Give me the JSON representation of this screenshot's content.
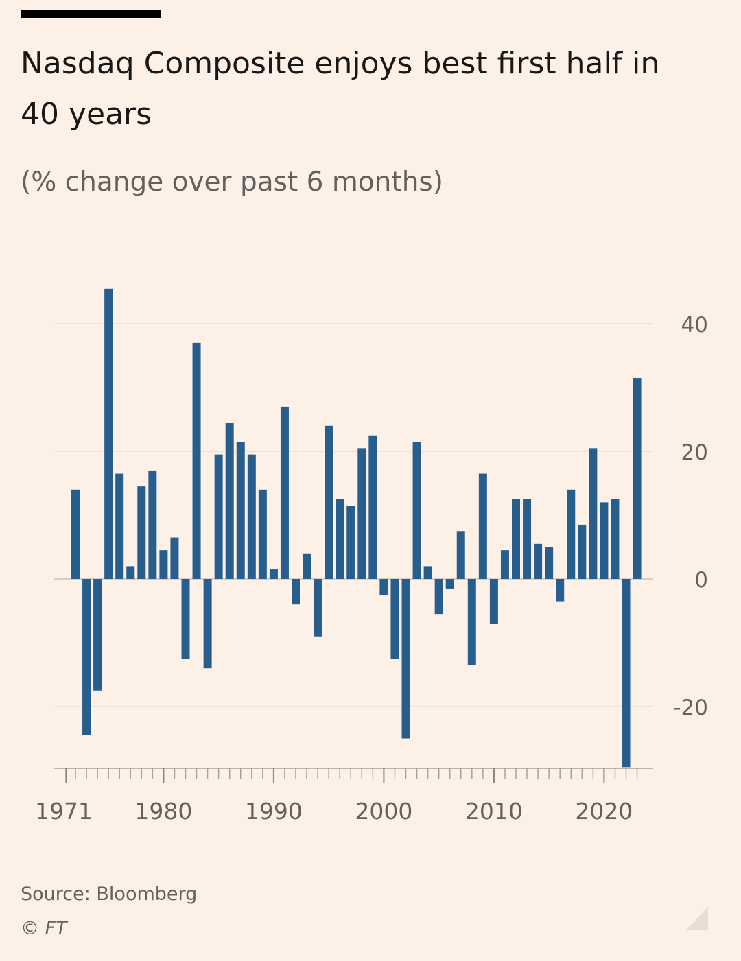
{
  "header": {
    "title": "Nasdaq Composite enjoys best first half in 40 years",
    "subtitle": "(% change over past 6 months)"
  },
  "footer": {
    "source": "Source: Bloomberg",
    "copyright": "© FT"
  },
  "colors": {
    "background": "#fdf1e7",
    "bar": "#275e8e",
    "gridline": "#e8ddd4",
    "axis_text": "#66605c",
    "tick": "#a8a09a"
  },
  "chart_data": {
    "type": "bar",
    "title": "Nasdaq Composite enjoys best first half in 40 years",
    "subtitle": "(% change over past 6 months)",
    "xlabel": "",
    "ylabel": "",
    "x_tick_labels": [
      "1971",
      "1980",
      "1990",
      "2000",
      "2010",
      "2020"
    ],
    "y_tick_values": [
      40,
      20,
      0,
      -20
    ],
    "y_tick_labels": [
      "40",
      "20",
      "0",
      "-20"
    ],
    "ylim": [
      -29.5,
      45.5
    ],
    "grid": true,
    "y_axis_position": "right",
    "categories": [
      "1972",
      "1973",
      "1974",
      "1975",
      "1976",
      "1977",
      "1978",
      "1979",
      "1980",
      "1981",
      "1982",
      "1983",
      "1984",
      "1985",
      "1986",
      "1987",
      "1988",
      "1989",
      "1990",
      "1991",
      "1992",
      "1993",
      "1994",
      "1995",
      "1996",
      "1997",
      "1998",
      "1999",
      "2000",
      "2001",
      "2002",
      "2003",
      "2004",
      "2005",
      "2006",
      "2007",
      "2008",
      "2009",
      "2010",
      "2011",
      "2012",
      "2013",
      "2014",
      "2015",
      "2016",
      "2017",
      "2018",
      "2019",
      "2020",
      "2021",
      "2022",
      "2023"
    ],
    "values": [
      14,
      -24.5,
      -17.5,
      45.5,
      16.5,
      2,
      14.5,
      17,
      4.5,
      6.5,
      -12.5,
      37,
      -14,
      19.5,
      24.5,
      21.5,
      19.5,
      14,
      1.5,
      27,
      -4,
      4,
      -9,
      24,
      12.5,
      11.5,
      20.5,
      22.5,
      -2.5,
      -12.5,
      -25,
      21.5,
      2,
      -5.5,
      -1.5,
      7.5,
      -13.5,
      16.5,
      -7,
      4.5,
      12.5,
      12.5,
      5.5,
      5,
      -3.5,
      14,
      8.5,
      20.5,
      12,
      12.5,
      -29.5,
      31.5
    ]
  }
}
